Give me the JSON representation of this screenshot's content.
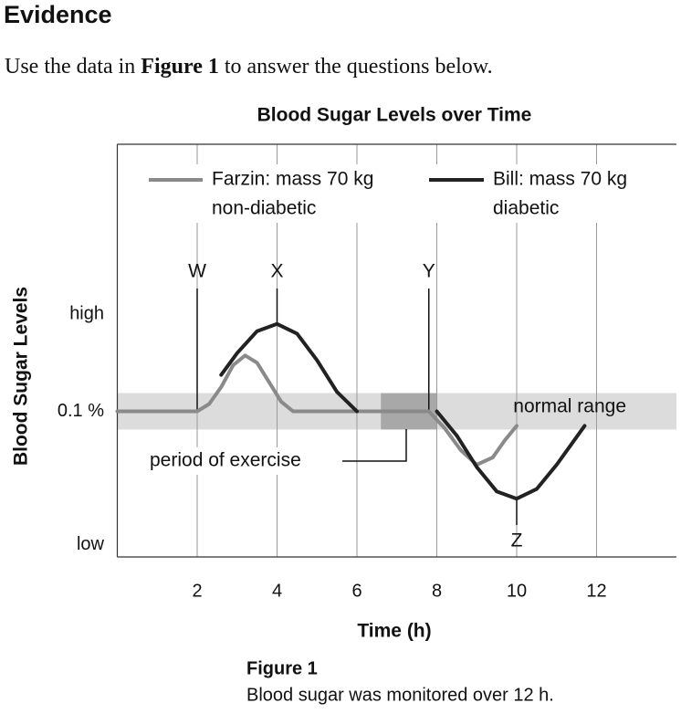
{
  "header": {
    "title": "Evidence"
  },
  "instruction": {
    "before": "Use the data in ",
    "bold": "Figure 1",
    "after": " to answer the questions below."
  },
  "chart_data": {
    "type": "line",
    "title": "Blood Sugar Levels over Time",
    "x_label": "Time (h)",
    "y_label": "Blood Sugar Levels",
    "xlim": [
      0,
      14
    ],
    "xticks": [
      2,
      4,
      6,
      8,
      10,
      12
    ],
    "ylim": [
      0.04,
      0.21
    ],
    "yticks": [
      {
        "value": 0.045,
        "label": "low"
      },
      {
        "value": 0.1,
        "label": "0.1 %"
      },
      {
        "value": 0.14,
        "label": "high"
      }
    ],
    "grid": true,
    "series": [
      {
        "name": "Farzin: mass 70 kg",
        "note": "non-diabetic",
        "color": "#8a8a8a",
        "x": [
          0,
          2,
          2.3,
          2.6,
          2.9,
          3.2,
          3.5,
          3.8,
          4.1,
          4.4,
          6,
          7.8,
          8.2,
          8.6,
          9.0,
          9.4,
          9.7,
          10
        ],
        "values": [
          0.1,
          0.1,
          0.103,
          0.11,
          0.119,
          0.123,
          0.12,
          0.112,
          0.104,
          0.1,
          0.1,
          0.1,
          0.093,
          0.084,
          0.078,
          0.081,
          0.088,
          0.094
        ]
      },
      {
        "name": "Bill: mass 70 kg",
        "note": "diabetic",
        "color": "#222222",
        "x": [
          2.6,
          3,
          3.5,
          4,
          4.5,
          5,
          5.5,
          6,
          7,
          8,
          8.5,
          9,
          9.5,
          10,
          10.5,
          11,
          11.7
        ],
        "values": [
          0.115,
          0.124,
          0.133,
          0.136,
          0.132,
          0.121,
          0.108,
          0.1,
          null,
          0.1,
          0.09,
          0.077,
          0.067,
          0.064,
          0.068,
          0.078,
          0.094
        ]
      }
    ],
    "normal_range": {
      "label": "normal range",
      "ylim": [
        0.0925,
        0.1075
      ]
    },
    "exercise": {
      "label": "period of exercise",
      "xlim": [
        6.6,
        8
      ]
    },
    "markers": [
      {
        "label": "W",
        "x": 2
      },
      {
        "label": "X",
        "x": 4
      },
      {
        "label": "Y",
        "x": 7.8
      },
      {
        "label": "Z",
        "x": 10
      }
    ]
  },
  "caption": {
    "title": "Figure 1",
    "text": "Blood sugar was monitored over 12 h."
  }
}
